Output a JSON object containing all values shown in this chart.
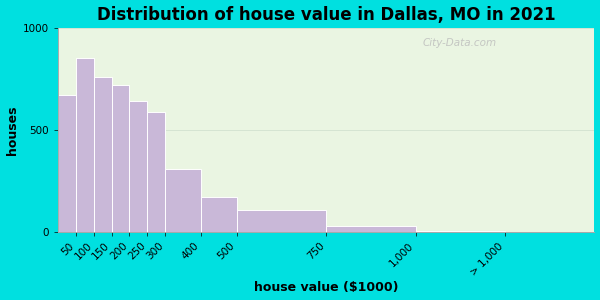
{
  "title": "Distribution of house value in Dallas, MO in 2021",
  "xlabel": "house value ($1000)",
  "ylabel": "houses",
  "bar_left_edges": [
    0,
    50,
    100,
    150,
    200,
    250,
    300,
    400,
    500,
    750,
    1000
  ],
  "bar_widths": [
    50,
    50,
    50,
    50,
    50,
    50,
    100,
    100,
    250,
    250,
    250
  ],
  "values": [
    670,
    850,
    760,
    720,
    640,
    590,
    310,
    170,
    105,
    30,
    5
  ],
  "tick_positions": [
    50,
    100,
    150,
    200,
    250,
    300,
    400,
    500,
    750,
    1000,
    1250
  ],
  "tick_labels": [
    "50",
    "100",
    "150",
    "200",
    "250",
    "300",
    "400",
    "500",
    "750",
    "1,000",
    "> 1,000"
  ],
  "bar_color": "#c9b8d8",
  "bar_edge_color": "#ffffff",
  "ylim": [
    0,
    1000
  ],
  "yticks": [
    0,
    500,
    1000
  ],
  "background_outer": "#00e0e0",
  "background_inner": "#eaf5e2",
  "title_fontsize": 12,
  "axis_label_fontsize": 9,
  "tick_fontsize": 7.5,
  "watermark_text": "City-Data.com"
}
